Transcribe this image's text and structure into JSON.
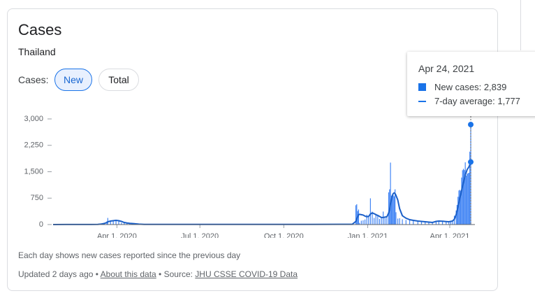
{
  "header": {
    "title": "Cases",
    "subtitle": "Thailand"
  },
  "controls": {
    "label": "Cases:",
    "options": [
      "New",
      "Total"
    ]
  },
  "tooltip": {
    "date": "Apr 24, 2021",
    "items": [
      {
        "label": "New cases:",
        "value": "2,839"
      },
      {
        "label": "7-day average:",
        "value": "1,777"
      }
    ]
  },
  "note": "Each day shows new cases reported since the previous day",
  "footer": {
    "updated": "Updated 2 days ago",
    "separator": "•",
    "about": "About this data",
    "source_prefix": "Source:",
    "source": "JHU CSSE COVID-19 Data"
  },
  "chart_data": {
    "type": "bar",
    "xlim": [
      "2020-01-22",
      "2021-04-24"
    ],
    "xticks": [
      {
        "value": "2020-04-01",
        "label": "Apr 1, 2020"
      },
      {
        "value": "2020-07-01",
        "label": "Jul 1, 2020"
      },
      {
        "value": "2020-10-01",
        "label": "Oct 1, 2020"
      },
      {
        "value": "2021-01-01",
        "label": "Jan 1, 2021"
      },
      {
        "value": "2021-04-01",
        "label": "Apr 1, 2021"
      }
    ],
    "ylim": [
      0,
      3000
    ],
    "yticks": [
      0,
      750,
      {
        "value": 1500,
        "label": "1,500"
      },
      {
        "value": 2250,
        "label": "2,250"
      },
      {
        "value": 3000,
        "label": "3,000"
      }
    ],
    "x": [
      "2020-01-22",
      "2020-02-05",
      "2020-02-19",
      "2020-03-04",
      "2020-03-11",
      "2020-03-15",
      "2020-03-18",
      "2020-03-21",
      "2020-03-22",
      "2020-03-25",
      "2020-03-28",
      "2020-03-31",
      "2020-04-03",
      "2020-04-06",
      "2020-04-09",
      "2020-04-12",
      "2020-04-15",
      "2020-04-20",
      "2020-04-25",
      "2020-05-01",
      "2020-05-15",
      "2020-06-01",
      "2020-07-01",
      "2020-08-01",
      "2020-09-01",
      "2020-10-01",
      "2020-11-01",
      "2020-12-01",
      "2020-12-15",
      "2020-12-19",
      "2020-12-20",
      "2020-12-21",
      "2020-12-22",
      "2020-12-23",
      "2020-12-25",
      "2020-12-27",
      "2020-12-29",
      "2020-12-31",
      "2021-01-02",
      "2021-01-04",
      "2021-01-06",
      "2021-01-08",
      "2021-01-10",
      "2021-01-12",
      "2021-01-14",
      "2021-01-16",
      "2021-01-18",
      "2021-01-20",
      "2021-01-22",
      "2021-01-24",
      "2021-01-25",
      "2021-01-26",
      "2021-01-27",
      "2021-01-28",
      "2021-01-29",
      "2021-01-30",
      "2021-01-31",
      "2021-02-01",
      "2021-02-03",
      "2021-02-05",
      "2021-02-08",
      "2021-02-12",
      "2021-02-16",
      "2021-02-20",
      "2021-02-25",
      "2021-03-01",
      "2021-03-05",
      "2021-03-09",
      "2021-03-13",
      "2021-03-17",
      "2021-03-20",
      "2021-03-24",
      "2021-03-28",
      "2021-03-31",
      "2021-04-02",
      "2021-04-04",
      "2021-04-06",
      "2021-04-08",
      "2021-04-09",
      "2021-04-10",
      "2021-04-11",
      "2021-04-12",
      "2021-04-13",
      "2021-04-14",
      "2021-04-15",
      "2021-04-16",
      "2021-04-17",
      "2021-04-18",
      "2021-04-19",
      "2021-04-20",
      "2021-04-21",
      "2021-04-22",
      "2021-04-23",
      "2021-04-24"
    ],
    "series": [
      {
        "name": "New cases",
        "color": "#4285f4",
        "values": [
          0,
          1,
          1,
          2,
          5,
          32,
          35,
          89,
          188,
          107,
          109,
          127,
          103,
          51,
          54,
          45,
          30,
          27,
          15,
          6,
          3,
          2,
          4,
          3,
          5,
          6,
          7,
          10,
          5,
          548,
          576,
          382,
          427,
          46,
          110,
          121,
          144,
          279,
          216,
          745,
          365,
          188,
          305,
          250,
          158,
          198,
          369,
          186,
          198,
          914,
          1000,
          1760,
          819,
          802,
          830,
          802,
          1000,
          350,
          170,
          180,
          150,
          130,
          120,
          100,
          90,
          80,
          70,
          60,
          50,
          110,
          100,
          80,
          90,
          60,
          80,
          84,
          250,
          400,
          559,
          789,
          967,
          985,
          965,
          1335,
          1543,
          1582,
          1547,
          1767,
          1390,
          1443,
          1458,
          1470,
          2070,
          2839
        ]
      },
      {
        "name": "7-day average",
        "color": "#1a5fc8",
        "values": [
          0,
          1,
          1,
          1,
          3,
          15,
          30,
          60,
          80,
          100,
          110,
          120,
          110,
          90,
          60,
          45,
          35,
          25,
          12,
          6,
          4,
          3,
          4,
          4,
          4,
          5,
          6,
          8,
          8,
          90,
          170,
          220,
          280,
          290,
          280,
          270,
          240,
          220,
          230,
          300,
          330,
          310,
          280,
          260,
          230,
          200,
          200,
          210,
          220,
          330,
          420,
          600,
          700,
          820,
          880,
          900,
          880,
          830,
          700,
          450,
          250,
          180,
          140,
          120,
          100,
          90,
          80,
          70,
          60,
          90,
          100,
          95,
          85,
          80,
          90,
          100,
          150,
          280,
          380,
          500,
          620,
          750,
          850,
          960,
          1080,
          1200,
          1300,
          1420,
          1480,
          1560,
          1600,
          1640,
          1700,
          1777
        ]
      }
    ]
  }
}
